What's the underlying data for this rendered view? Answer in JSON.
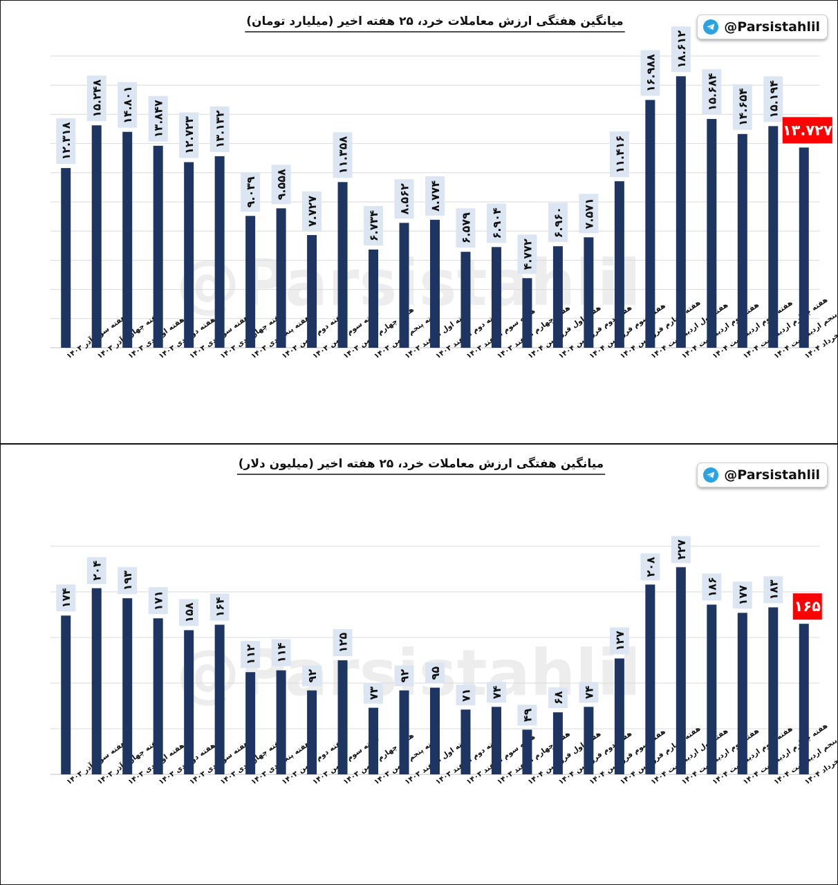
{
  "brand": {
    "handle": "@Parsistahlil",
    "watermark": "@Parsistahlil",
    "icon": "telegram-icon"
  },
  "colors": {
    "bar": "#1f3561",
    "highlight": "#ff0000",
    "label_bg": "#dbe6f2",
    "grid": "#d9d9d9"
  },
  "categories": [
    "هفته سوم آذر ۱۴۰۳",
    "هفته چهارم آذر ۱۴۰۳",
    "هفته اول دی ۱۴۰۳",
    "هفته دوم دی ۱۴۰۳",
    "هفته سوم دی ۱۴۰۳",
    "هفته چهارم دی ۱۴۰۳",
    "هفته پنجم دی ۱۴۰۳",
    "هفته دوم بهمن ۱۴۰۳",
    "هفته سوم بهمن ۱۴۰۳",
    "هفته چهارم بهمن ۱۴۰۳",
    "هفته پنجم بهمن ۱۴۰۳",
    "هفته اول اسفند ۱۴۰۳",
    "هفته دوم اسفند ۱۴۰۳",
    "هفته سوم اسفند ۱۴۰۳",
    "هفته چهارم اسفند ۱۴۰۳",
    "هفته اول فروردین ۱۴۰۴",
    "هفته دوم فروردین ۱۴۰۴",
    "هفته سوم فروردین ۱۴۰۴",
    "هفته چهارم فروردین ۱۴۰۴",
    "هفته اول اردیبهشت ۱۴۰۴",
    "هفته دوم اردیبهشت ۱۴۰۴",
    "هفته سوم اردیبهشت ۱۴۰۴",
    "هفته چهارم اردیبهشت ۱۴۰۴",
    "هفته پنجم اردیبهشت ۱۴۰۴",
    "هفته اول خرداد ۱۴۰۴"
  ],
  "chart_data": [
    {
      "type": "bar",
      "title": "میانگین هفتگی ارزش معاملات خرد، ۲۵ هفته اخیر (میلیارد تومان)",
      "xlabel": "",
      "ylabel": "",
      "ylim": [
        0,
        20
      ],
      "grid": true,
      "highlight_last": true,
      "values": [
        12.318,
        15.248,
        14.801,
        13.847,
        12.723,
        13.132,
        9.039,
        9.558,
        7.727,
        11.358,
        6.734,
        8.562,
        8.774,
        6.579,
        6.904,
        4.772,
        6.96,
        7.571,
        11.416,
        16.988,
        18.612,
        15.684,
        14.654,
        15.194,
        13.727
      ],
      "value_labels": [
        "۱۲.۳۱۸",
        "۱۵.۲۴۸",
        "۱۴.۸۰۱",
        "۱۳.۸۴۷",
        "۱۲.۷۲۳",
        "۱۳.۱۳۲",
        "۹.۰۳۹",
        "۹.۵۵۸",
        "۷.۷۲۷",
        "۱۱.۳۵۸",
        "۶.۷۳۴",
        "۸.۵۶۲",
        "۸.۷۷۴",
        "۶.۵۷۹",
        "۶.۹۰۴",
        "۴.۷۷۲",
        "۶.۹۶۰",
        "۷.۵۷۱",
        "۱۱.۴۱۶",
        "۱۶.۹۸۸",
        "۱۸.۶۱۲",
        "۱۵.۶۸۴",
        "۱۴.۶۵۴",
        "۱۵.۱۹۴",
        "۱۳.۷۲۷"
      ]
    },
    {
      "type": "bar",
      "title": "میانگین هفتگی ارزش معاملات خرد، ۲۵ هفته اخیر (میلیون دلار)",
      "xlabel": "",
      "ylabel": "",
      "ylim": [
        0,
        250
      ],
      "grid": true,
      "highlight_last": true,
      "values": [
        174,
        204,
        193,
        171,
        158,
        164,
        112,
        114,
        92,
        125,
        73,
        92,
        95,
        71,
        74,
        49,
        68,
        74,
        127,
        208,
        227,
        186,
        177,
        183,
        165
      ],
      "value_labels": [
        "۱۷۴",
        "۲۰۴",
        "۱۹۳",
        "۱۷۱",
        "۱۵۸",
        "۱۶۴",
        "۱۱۲",
        "۱۱۴",
        "۹۲",
        "۱۲۵",
        "۷۳",
        "۹۲",
        "۹۵",
        "۷۱",
        "۷۴",
        "۴۹",
        "۶۸",
        "۷۴",
        "۱۲۷",
        "۲۰۸",
        "۲۲۷",
        "۱۸۶",
        "۱۷۷",
        "۱۸۳",
        "۱۶۵"
      ]
    }
  ]
}
